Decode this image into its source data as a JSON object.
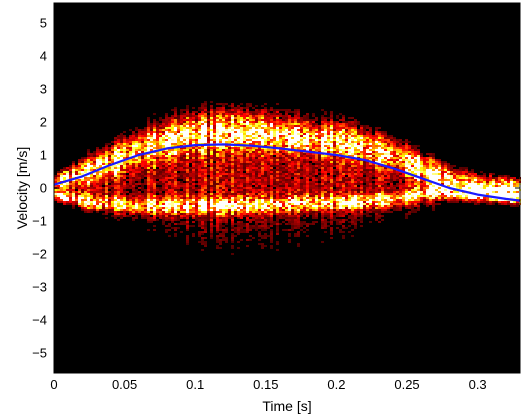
{
  "chart_data": {
    "type": "heatmap",
    "title": "",
    "xlabel": "Time [s]",
    "ylabel": "Velocity [m/s]",
    "xlim": [
      0,
      0.33
    ],
    "ylim": [
      -5.6,
      5.6
    ],
    "x_ticks": [
      {
        "value": 0,
        "label": "0"
      },
      {
        "value": 0.05,
        "label": "0.05"
      },
      {
        "value": 0.1,
        "label": "0.1"
      },
      {
        "value": 0.15,
        "label": "0.15"
      },
      {
        "value": 0.2,
        "label": "0.2"
      },
      {
        "value": 0.25,
        "label": "0.25"
      },
      {
        "value": 0.3,
        "label": "0.3"
      }
    ],
    "y_ticks": [
      {
        "value": 5,
        "label": "5"
      },
      {
        "value": 4,
        "label": "4"
      },
      {
        "value": 3,
        "label": "3"
      },
      {
        "value": 2,
        "label": "2"
      },
      {
        "value": 1,
        "label": "1"
      },
      {
        "value": 0,
        "label": "0"
      },
      {
        "value": -1,
        "label": "−1"
      },
      {
        "value": -2,
        "label": "−2"
      },
      {
        "value": -3,
        "label": "−3"
      },
      {
        "value": -4,
        "label": "−4"
      },
      {
        "value": -5,
        "label": "−5"
      }
    ],
    "grid": false,
    "colormap": "hot",
    "background_color": "#000000",
    "spectral_bands": [
      {
        "x": [
          0,
          0.03,
          0.06,
          0.09,
          0.12,
          0.15,
          0.18,
          0.21,
          0.24,
          0.27,
          0.3,
          0.33
        ],
        "center": [
          0.15,
          0.6,
          1.15,
          1.55,
          1.7,
          1.65,
          1.5,
          1.35,
          1.0,
          0.4,
          0.0,
          -0.1
        ],
        "halfwidth": [
          0.2,
          0.35,
          0.45,
          0.5,
          0.5,
          0.5,
          0.45,
          0.45,
          0.4,
          0.35,
          0.3,
          0.25
        ],
        "intensity": 1.0
      },
      {
        "x": [
          0,
          0.03,
          0.06,
          0.09,
          0.12,
          0.15,
          0.18,
          0.21,
          0.24,
          0.27,
          0.3,
          0.33
        ],
        "center": [
          -0.2,
          -0.45,
          -0.55,
          -0.55,
          -0.55,
          -0.5,
          -0.45,
          -0.45,
          -0.35,
          -0.1,
          -0.2,
          -0.3
        ],
        "halfwidth": [
          0.15,
          0.2,
          0.22,
          0.22,
          0.22,
          0.22,
          0.22,
          0.2,
          0.2,
          0.18,
          0.15,
          0.15
        ],
        "intensity": 1.0
      },
      {
        "x": [
          0,
          0.05,
          0.1,
          0.15,
          0.2,
          0.25,
          0.28,
          0.33
        ],
        "center": [
          0,
          0.3,
          0.3,
          0.3,
          0.3,
          0.2,
          0,
          0
        ],
        "halfwidth": [
          0.3,
          1.2,
          1.8,
          1.9,
          1.6,
          1.0,
          0.4,
          0.3
        ],
        "intensity": 0.35
      }
    ],
    "series": [
      {
        "color": "#1a1aff",
        "x": [
          0,
          0.02,
          0.04,
          0.06,
          0.08,
          0.1,
          0.12,
          0.14,
          0.16,
          0.18,
          0.2,
          0.22,
          0.24,
          0.26,
          0.28,
          0.3,
          0.32,
          0.33
        ],
        "y": [
          0.1,
          0.35,
          0.7,
          1.0,
          1.2,
          1.3,
          1.32,
          1.28,
          1.2,
          1.1,
          1.0,
          0.85,
          0.6,
          0.3,
          0.0,
          -0.2,
          -0.33,
          -0.38
        ]
      }
    ]
  }
}
